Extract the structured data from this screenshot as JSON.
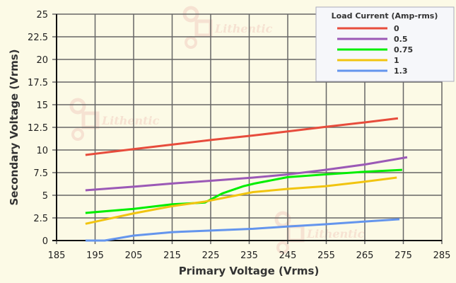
{
  "watermark": "Lithentic",
  "chart_data": {
    "type": "line",
    "title": "",
    "xlabel": "Primary Voltage (Vrms)",
    "ylabel": "Secondary Voltage (Vrms)",
    "xlim": [
      185,
      285
    ],
    "ylim": [
      0,
      25
    ],
    "xticks": [
      "185",
      "195",
      "205",
      "215",
      "225",
      "235",
      "245",
      "255",
      "265",
      "275",
      "285"
    ],
    "yticks": [
      "0",
      "2.5",
      "5",
      "7.5",
      "10",
      "12.5",
      "15",
      "17.5",
      "20",
      "22.5",
      "25"
    ],
    "grid": true,
    "legend": {
      "title": "Load Current (Amp-rms)",
      "placement": "top-right"
    },
    "series": [
      {
        "name": "0",
        "color": "#e74c3c",
        "points": [
          [
            192.5,
            9.45
          ],
          [
            205,
            10.1
          ],
          [
            225,
            11.1
          ],
          [
            236,
            11.6
          ],
          [
            245,
            12.05
          ],
          [
            254.7,
            12.55
          ],
          [
            265,
            13.05
          ],
          [
            273.6,
            13.5
          ]
        ]
      },
      {
        "name": "0.5",
        "color": "#9b59b6",
        "points": [
          [
            192.5,
            5.55
          ],
          [
            205,
            5.95
          ],
          [
            215,
            6.3
          ],
          [
            225,
            6.6
          ],
          [
            236,
            6.95
          ],
          [
            245,
            7.3
          ],
          [
            254.7,
            7.8
          ],
          [
            265,
            8.4
          ],
          [
            276,
            9.2
          ]
        ]
      },
      {
        "name": "0.75",
        "color": "#00ee00",
        "points": [
          [
            192.5,
            3.05
          ],
          [
            205,
            3.5
          ],
          [
            215,
            4.0
          ],
          [
            223.5,
            4.2
          ],
          [
            228,
            5.2
          ],
          [
            233.5,
            6.0
          ],
          [
            236.4,
            6.3
          ],
          [
            245,
            7.0
          ],
          [
            254.7,
            7.3
          ],
          [
            265,
            7.6
          ],
          [
            274.7,
            7.8
          ]
        ]
      },
      {
        "name": "1",
        "color": "#f1c40f",
        "points": [
          [
            192.5,
            1.85
          ],
          [
            205,
            3.0
          ],
          [
            215,
            3.8
          ],
          [
            223.5,
            4.3
          ],
          [
            236,
            5.35
          ],
          [
            245,
            5.7
          ],
          [
            254.7,
            6.0
          ],
          [
            265,
            6.5
          ],
          [
            273.3,
            6.95
          ]
        ]
      },
      {
        "name": "1.3",
        "color": "#6495ed",
        "points": [
          [
            192.5,
            0
          ],
          [
            197.5,
            0
          ],
          [
            205,
            0.55
          ],
          [
            215,
            0.93
          ],
          [
            225,
            1.1
          ],
          [
            236,
            1.3
          ],
          [
            245,
            1.55
          ],
          [
            254.7,
            1.8
          ],
          [
            265,
            2.1
          ],
          [
            274,
            2.35
          ]
        ]
      }
    ]
  }
}
